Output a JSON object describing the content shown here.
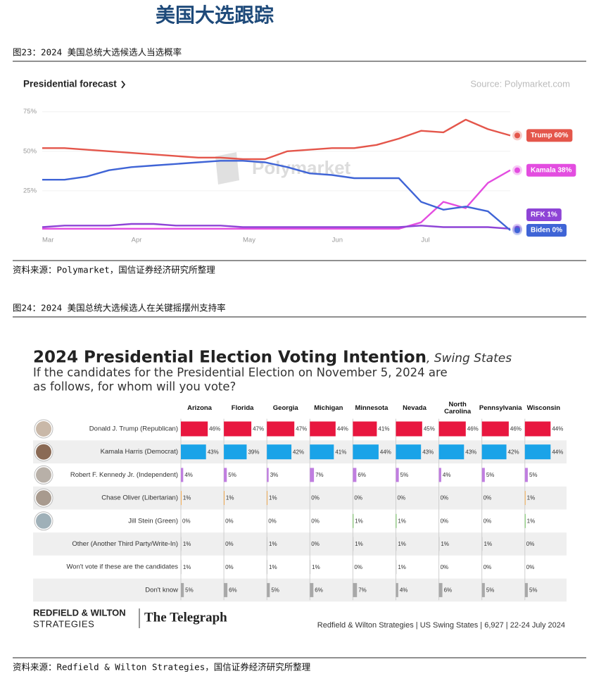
{
  "header": {
    "title": "美国大选跟踪"
  },
  "figures": [
    {
      "caption": "图23：2024 美国总统大选候选人当选概率",
      "source": "资料来源：Polymarket，国信证券经济研究所整理"
    },
    {
      "caption": "图24：2024 美国总统大选候选人在关键摇摆州支持率",
      "source": "资料来源：Redfield & Wilton Strategies，国信证券经济研究所整理"
    }
  ],
  "chart_data": [
    {
      "type": "line",
      "title": "Presidential forecast",
      "source": "Source: Polymarket.com",
      "watermark": "Polymarket",
      "categories": [
        "Mar",
        null,
        null,
        null,
        "Apr",
        null,
        null,
        null,
        null,
        "May",
        null,
        null,
        null,
        "Jun",
        null,
        null,
        null,
        "Jul",
        null,
        null,
        null,
        null
      ],
      "ylim": [
        0,
        78
      ],
      "yticks": [
        {
          "value": 25,
          "label": "25%"
        },
        {
          "value": 50,
          "label": "50%"
        },
        {
          "value": 75,
          "label": "75%"
        }
      ],
      "grid": true,
      "series": [
        {
          "color": "#e4564b",
          "values": [
            52,
            52,
            51,
            50,
            49,
            48,
            47,
            46,
            46,
            45,
            45,
            50,
            51,
            52,
            52,
            54,
            58,
            63,
            62,
            70,
            64,
            60
          ],
          "value_labels": [
            null,
            null,
            null,
            null,
            null,
            null,
            null,
            null,
            null,
            null,
            null,
            null,
            null,
            null,
            null,
            null,
            null,
            null,
            null,
            null,
            null,
            "Trump 60%"
          ]
        },
        {
          "color": "#e34de0",
          "values": [
            1,
            1,
            1,
            1,
            1,
            1,
            1,
            1,
            1,
            1,
            1,
            1,
            1,
            1,
            1,
            1,
            1,
            5,
            18,
            14,
            30,
            38
          ],
          "value_labels": [
            null,
            null,
            null,
            null,
            null,
            null,
            null,
            null,
            null,
            null,
            null,
            null,
            null,
            null,
            null,
            null,
            null,
            null,
            null,
            null,
            null,
            "Kamala 38%"
          ]
        },
        {
          "color": "#8e44d6",
          "values": [
            2,
            3,
            3,
            3,
            4,
            4,
            3,
            3,
            3,
            2,
            2,
            2,
            2,
            2,
            2,
            2,
            2,
            3,
            2,
            2,
            2,
            1
          ],
          "value_labels": [
            null,
            null,
            null,
            null,
            null,
            null,
            null,
            null,
            null,
            null,
            null,
            null,
            null,
            null,
            null,
            null,
            null,
            null,
            null,
            null,
            null,
            "RFK 1%"
          ]
        },
        {
          "color": "#3f64d6",
          "values": [
            32,
            32,
            34,
            38,
            40,
            41,
            42,
            43,
            44,
            44,
            43,
            40,
            36,
            35,
            33,
            33,
            33,
            18,
            13,
            15,
            12,
            0
          ],
          "value_labels": [
            null,
            null,
            null,
            null,
            null,
            null,
            null,
            null,
            null,
            null,
            null,
            null,
            null,
            null,
            null,
            null,
            null,
            null,
            null,
            null,
            null,
            "Biden 0%"
          ]
        }
      ]
    },
    {
      "type": "grid-bar",
      "title": "2024 Presidential Election Voting Intention",
      "title_suffix": ", Swing States",
      "subtitle": [
        "If the candidates for the Presidential Election on November 5, 2024 are",
        "as follows, for whom will you vote?"
      ],
      "categories": [
        "Arizona",
        "Florida",
        "Georgia",
        "Michigan",
        "Minnesota",
        "Nevada",
        "North Carolina",
        "Pennsylvania",
        "Wisconsin"
      ],
      "series": [
        {
          "name": "Donald J. Trump (Republican)",
          "color": "#e8173f",
          "values": [
            46,
            47,
            47,
            44,
            41,
            45,
            46,
            46,
            44
          ],
          "value_labels": [
            "46%",
            "47%",
            "47%",
            "44%",
            "41%",
            "45%",
            "46%",
            "46%",
            "44%"
          ]
        },
        {
          "name": "Kamala Harris (Democrat)",
          "color": "#1aa3e8",
          "values": [
            43,
            39,
            42,
            41,
            44,
            43,
            43,
            42,
            44
          ],
          "value_labels": [
            "43%",
            "39%",
            "42%",
            "41%",
            "44%",
            "43%",
            "43%",
            "42%",
            "44%"
          ]
        },
        {
          "name": "Robert F. Kennedy Jr. (Independent)",
          "color": "#c07ee0",
          "values": [
            4,
            5,
            3,
            7,
            6,
            5,
            4,
            5,
            5
          ],
          "value_labels": [
            "4%",
            "5%",
            "3%",
            "7%",
            "6%",
            "5%",
            "4%",
            "5%",
            "5%"
          ]
        },
        {
          "name": "Chase Oliver (Libertarian)",
          "color": "#f4a23a",
          "values": [
            1,
            1,
            1,
            0,
            0,
            0,
            0,
            0,
            1
          ],
          "value_labels": [
            "1%",
            "1%",
            "1%",
            "0%",
            "0%",
            "0%",
            "0%",
            "0%",
            "1%"
          ]
        },
        {
          "name": "Jill Stein (Green)",
          "color": "#5dbb46",
          "values": [
            0,
            0,
            0,
            0,
            1,
            1,
            0,
            0,
            1
          ],
          "value_labels": [
            "0%",
            "0%",
            "0%",
            "0%",
            "1%",
            "1%",
            "0%",
            "0%",
            "1%"
          ]
        },
        {
          "name": "Other (Another Third Party/Write-In)",
          "color": "#c9c9c9",
          "values": [
            1,
            0,
            1,
            0,
            1,
            1,
            1,
            1,
            0
          ],
          "value_labels": [
            "1%",
            "0%",
            "1%",
            "0%",
            "1%",
            "1%",
            "1%",
            "1%",
            "0%"
          ]
        },
        {
          "name": "Won't vote if these are the candidates",
          "color": "#c9c9c9",
          "values": [
            1,
            0,
            1,
            1,
            0,
            1,
            0,
            0,
            0
          ],
          "value_labels": [
            "1%",
            "0%",
            "1%",
            "1%",
            "0%",
            "1%",
            "0%",
            "0%",
            "0%"
          ]
        },
        {
          "name": "Don't know",
          "color": "#a8a8a8",
          "values": [
            5,
            6,
            5,
            6,
            7,
            4,
            6,
            5,
            5
          ],
          "value_labels": [
            "5%",
            "6%",
            "5%",
            "6%",
            "7%",
            "4%",
            "6%",
            "5%",
            "5%"
          ]
        }
      ],
      "logos": {
        "brand_line1": "REDFIELD & WILTON",
        "brand_line2": "STRATEGIES",
        "partner": "The Telegraph"
      },
      "footnote": "Redfield & Wilton Strategies | US Swing States | 6,927 | 22-24 July 2024"
    }
  ]
}
